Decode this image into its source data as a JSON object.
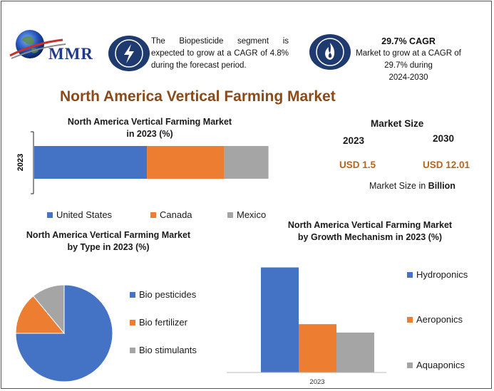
{
  "header": {
    "logo_text": "MMR",
    "info1": "The Biopesticide segment is expected to grow at a CAGR of 4.8% during the forecast period.",
    "info2_title": "29.7% CAGR",
    "info2_line1": "Market to grow at a CAGR of",
    "info2_line2": "29.7% during",
    "info2_line3": "2024-2030"
  },
  "main_title": "North America Vertical Farming Market",
  "market_size": {
    "title": "Market Size",
    "year_start": "2023",
    "year_end": "2030",
    "value_start": "USD 1.5",
    "value_end": "USD 12.01",
    "unit_prefix": "Market Size in ",
    "unit_bold": "Billion"
  },
  "colors": {
    "blue": "#4472c4",
    "orange": "#ed7d31",
    "gray": "#a5a5a5",
    "navy": "#1e3a6e",
    "title_brown": "#8a4a1a",
    "value_brown": "#b5651d"
  },
  "chart_data": [
    {
      "type": "bar",
      "orientation": "horizontal-stacked",
      "title_line1": "North America Vertical Farming Market",
      "title_line2": "in 2023 (%)",
      "categories": [
        "2023"
      ],
      "series": [
        {
          "name": "United States",
          "values": [
            51
          ]
        },
        {
          "name": "Canada",
          "values": [
            35
          ]
        },
        {
          "name": "Mexico",
          "values": [
            20
          ]
        }
      ],
      "legend_position": "bottom",
      "grid": false
    },
    {
      "type": "pie",
      "title_line1": "North America Vertical Farming Market",
      "title_line2": "by Type in 2023 (%)",
      "labels": [
        "Bio pesticides",
        "Bio fertilizer",
        "Bio stimulants"
      ],
      "values": [
        75,
        14,
        11
      ],
      "legend_position": "right"
    },
    {
      "type": "bar",
      "title_line1": "North America Vertical Farming Market",
      "title_line2": "by Growth Mechanism in 2023 (%)",
      "categories": [
        "2023"
      ],
      "series": [
        {
          "name": "Hydroponics",
          "values": [
            50
          ]
        },
        {
          "name": "Aeroponics",
          "values": [
            23
          ]
        },
        {
          "name": "Aquaponics",
          "values": [
            19
          ]
        }
      ],
      "legend_position": "right",
      "grid": false
    }
  ]
}
